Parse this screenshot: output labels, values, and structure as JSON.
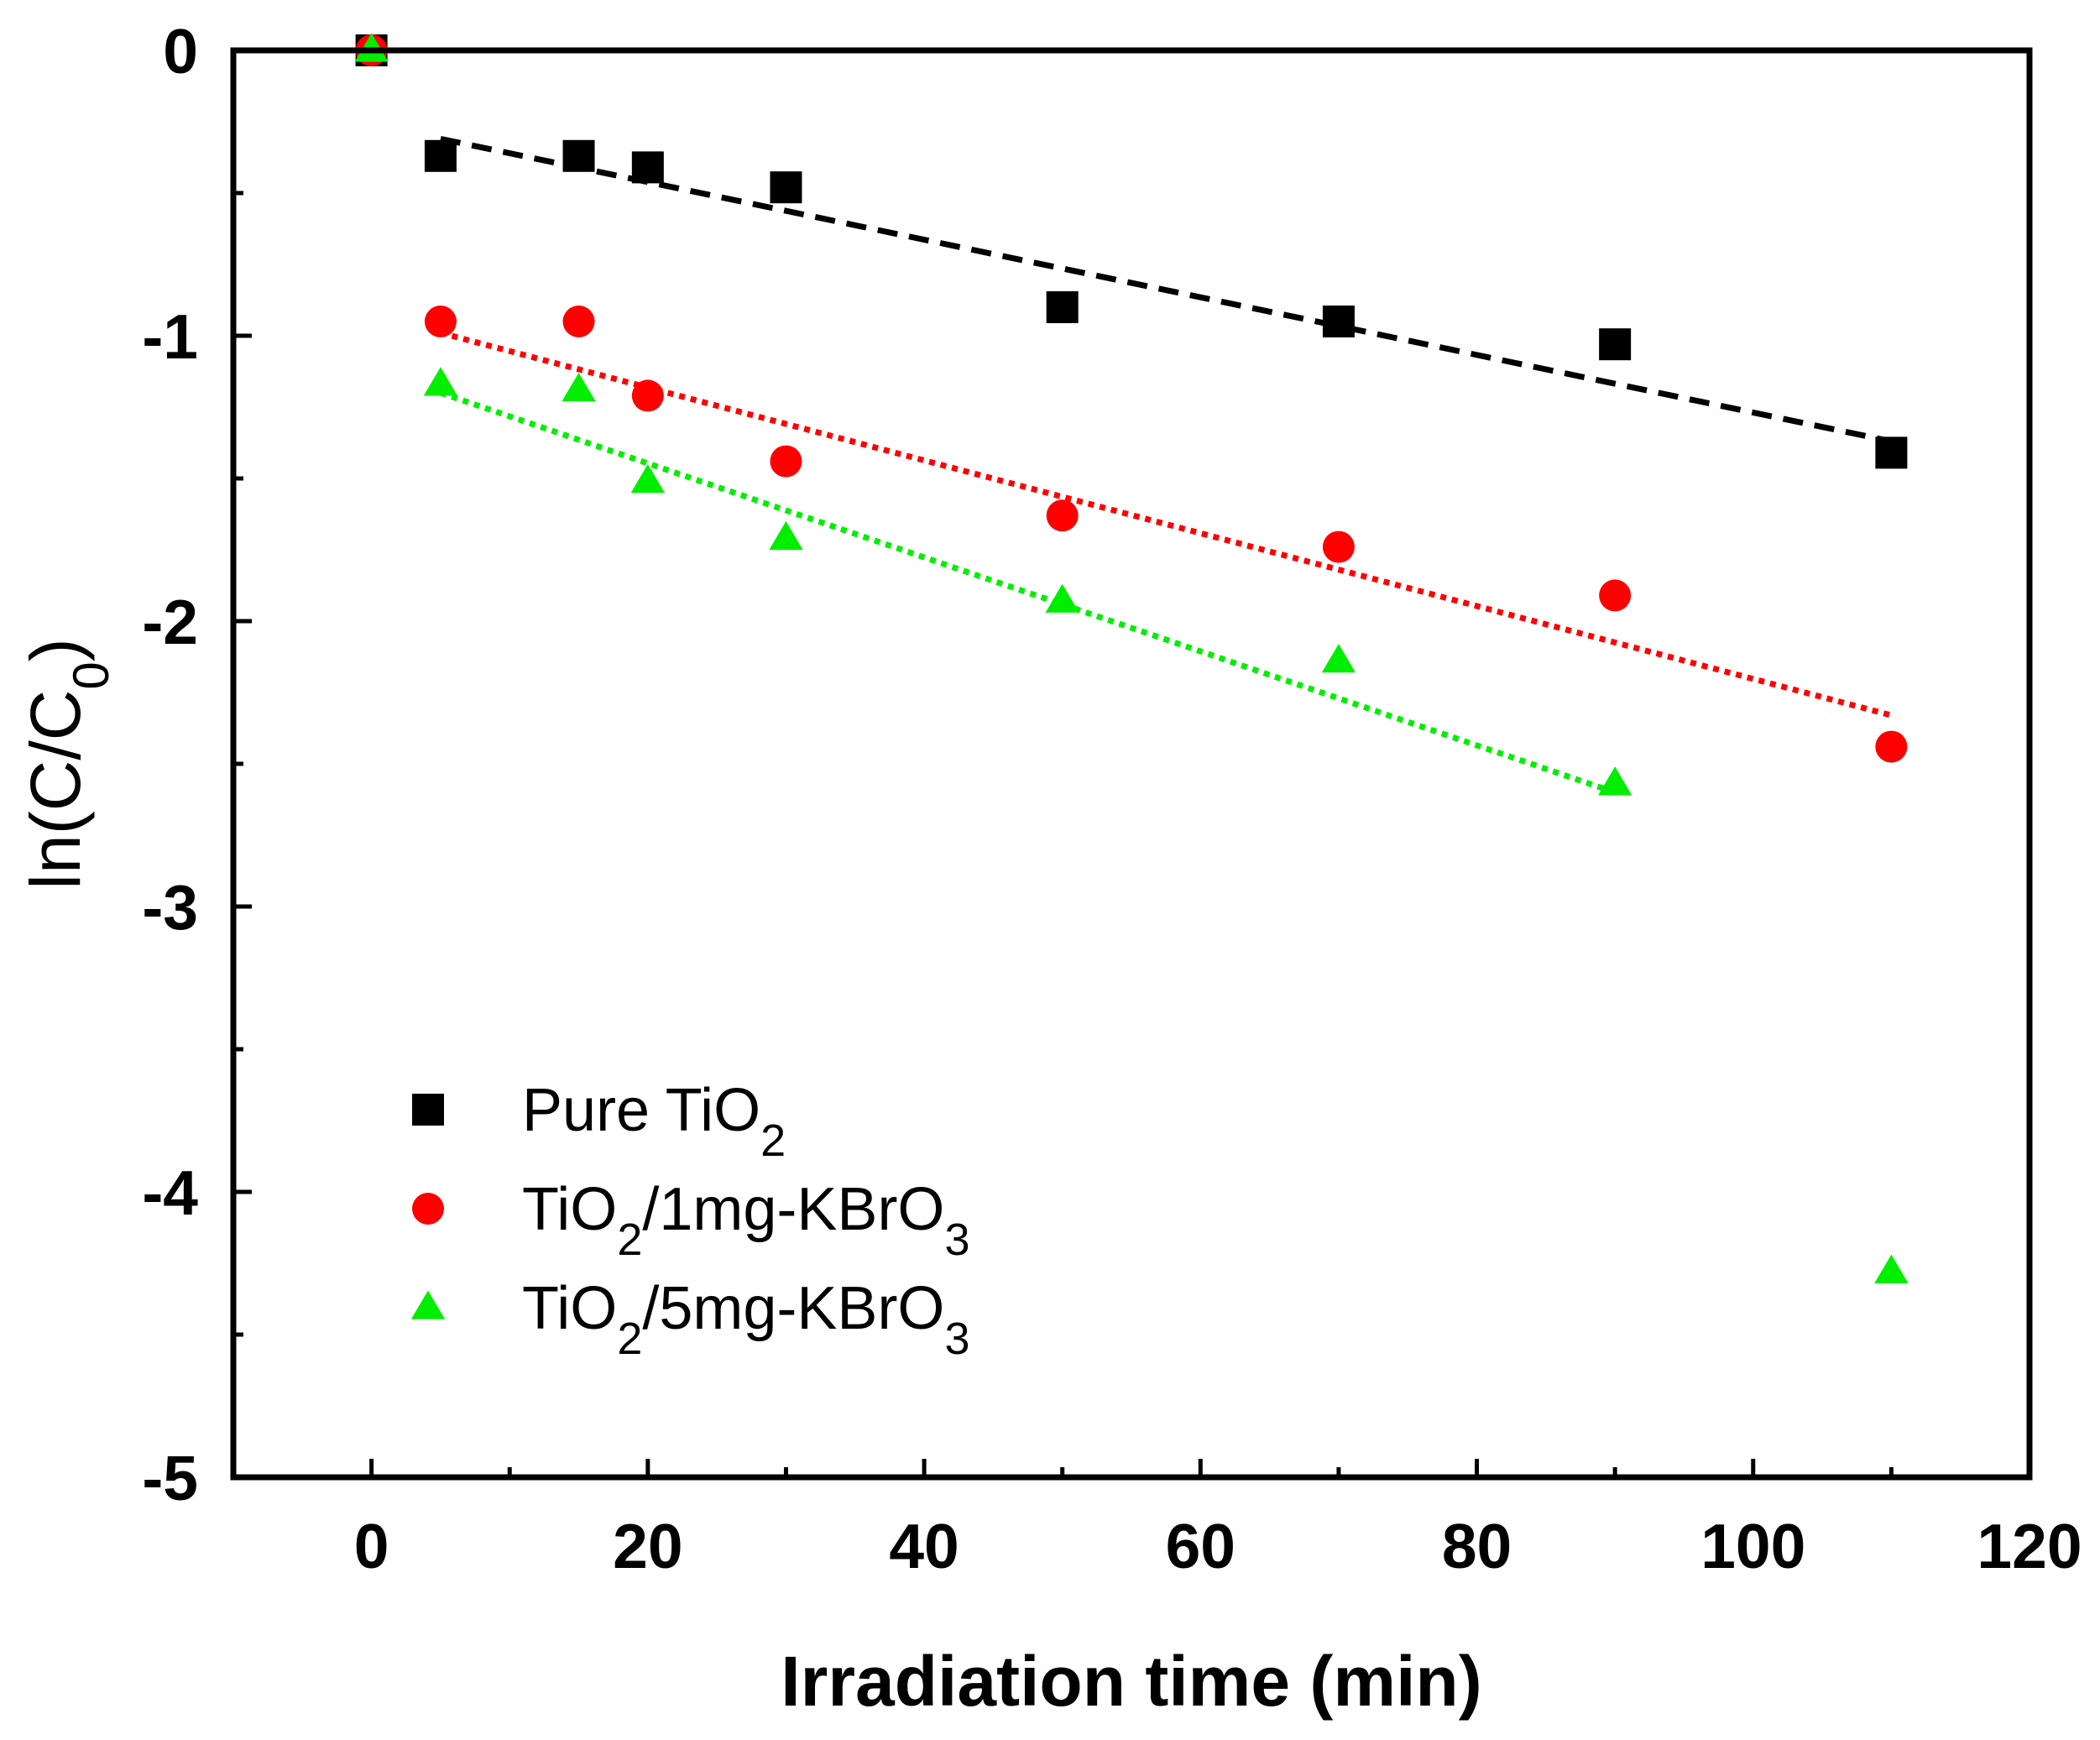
{
  "chart_data": {
    "type": "scatter",
    "xlabel": "Irradiation time (min)",
    "ylabel": {
      "main": "ln(C/C",
      "sub": "0",
      "close": ")"
    },
    "xlim": [
      -10,
      120
    ],
    "ylim": [
      -5,
      0
    ],
    "xticks": [
      0,
      20,
      40,
      60,
      80,
      100,
      120
    ],
    "yticks": [
      0,
      -1,
      -2,
      -3,
      -4,
      -5
    ],
    "legend_position": "bottom-left",
    "series": [
      {
        "name": "Pure TiO2",
        "legend_parts": [
          {
            "t": "Pure TiO"
          },
          {
            "t": "2",
            "sub": true
          }
        ],
        "marker": "square",
        "color": "#000000",
        "x": [
          0,
          5,
          15,
          20,
          30,
          50,
          70,
          90,
          110
        ],
        "y": [
          0,
          -0.37,
          -0.37,
          -0.41,
          -0.48,
          -0.9,
          -0.95,
          -1.03,
          -1.41
        ],
        "fit": {
          "x": [
            5,
            110
          ],
          "y": [
            -0.31,
            -1.37
          ],
          "style": "dashed"
        }
      },
      {
        "name": "TiO2/1mg-KBrO3",
        "legend_parts": [
          {
            "t": "TiO"
          },
          {
            "t": "2",
            "sub": true
          },
          {
            "t": "/1mg-KBrO"
          },
          {
            "t": "3",
            "sub": true
          }
        ],
        "marker": "circle",
        "color": "#ff0000",
        "x": [
          0,
          5,
          15,
          20,
          30,
          50,
          70,
          90,
          110
        ],
        "y": [
          0,
          -0.95,
          -0.95,
          -1.21,
          -1.44,
          -1.63,
          -1.74,
          -1.91,
          -2.44
        ],
        "fit": {
          "x": [
            5,
            110
          ],
          "y": [
            -0.99,
            -2.33
          ],
          "style": "dotted"
        }
      },
      {
        "name": "TiO2/5mg-KBrO3",
        "legend_parts": [
          {
            "t": "TiO"
          },
          {
            "t": "2",
            "sub": true
          },
          {
            "t": "/5mg-KBrO"
          },
          {
            "t": "3",
            "sub": true
          }
        ],
        "marker": "triangle",
        "color": "#00ee00",
        "x": [
          0,
          5,
          15,
          20,
          30,
          50,
          70,
          90,
          110
        ],
        "y": [
          0,
          -1.17,
          -1.19,
          -1.51,
          -1.71,
          -1.93,
          -2.14,
          -2.57,
          -4.28
        ],
        "fit": {
          "x": [
            5,
            90
          ],
          "y": [
            -1.2,
            -2.6
          ],
          "style": "dotted"
        }
      }
    ]
  }
}
